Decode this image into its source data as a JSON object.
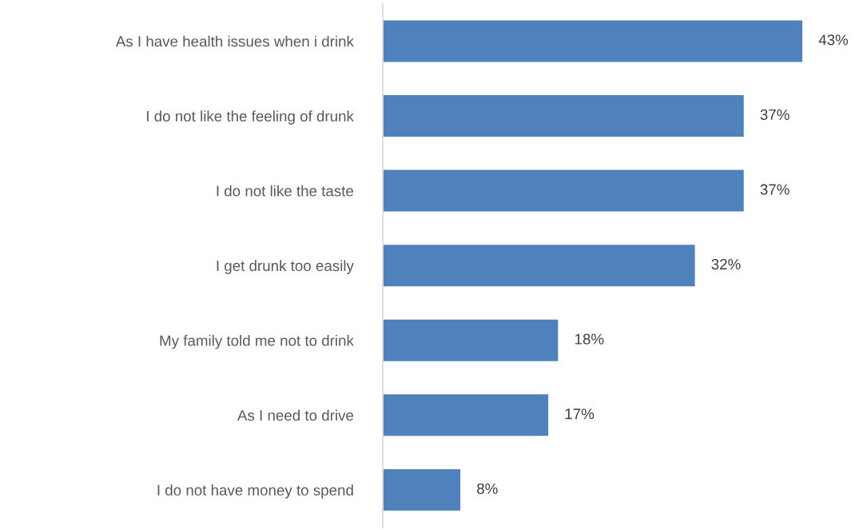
{
  "chart_data": {
    "type": "bar",
    "orientation": "horizontal",
    "categories": [
      "As I have health issues when i drink",
      "I do not like the feeling of drunk",
      "I do not like the taste",
      "I get drunk too easily",
      "My family told me not to drink",
      "As I need to drive",
      "I do not have money to spend"
    ],
    "values": [
      43,
      37,
      37,
      32,
      18,
      17,
      8
    ],
    "value_labels": [
      "43%",
      "37%",
      "37%",
      "32%",
      "18%",
      "17%",
      "8%"
    ],
    "color": "#4f81bd",
    "tick_labels": "y",
    "grid": false,
    "legend": false
  }
}
